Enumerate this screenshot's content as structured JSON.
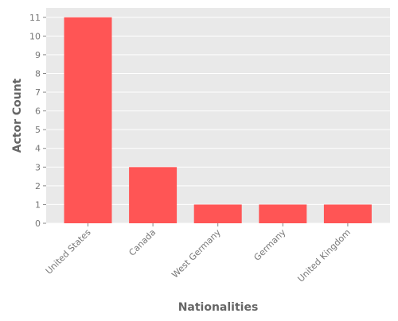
{
  "chart_data": {
    "type": "bar",
    "categories": [
      "United States",
      "Canada",
      "West Germany",
      "Germany",
      "United Kingdom"
    ],
    "values": [
      11,
      3,
      1,
      1,
      1
    ],
    "xlabel": "Nationalities",
    "ylabel": "Actor Count",
    "ylim": [
      0,
      11.5
    ],
    "yticks": [
      0,
      1,
      2,
      3,
      4,
      5,
      6,
      7,
      8,
      9,
      10,
      11
    ],
    "grid": true,
    "colors": {
      "bar": "#ff5555",
      "plot_background": "#e9e9e9",
      "grid": "#ffffff",
      "text": "#777777",
      "label": "#666666"
    }
  }
}
